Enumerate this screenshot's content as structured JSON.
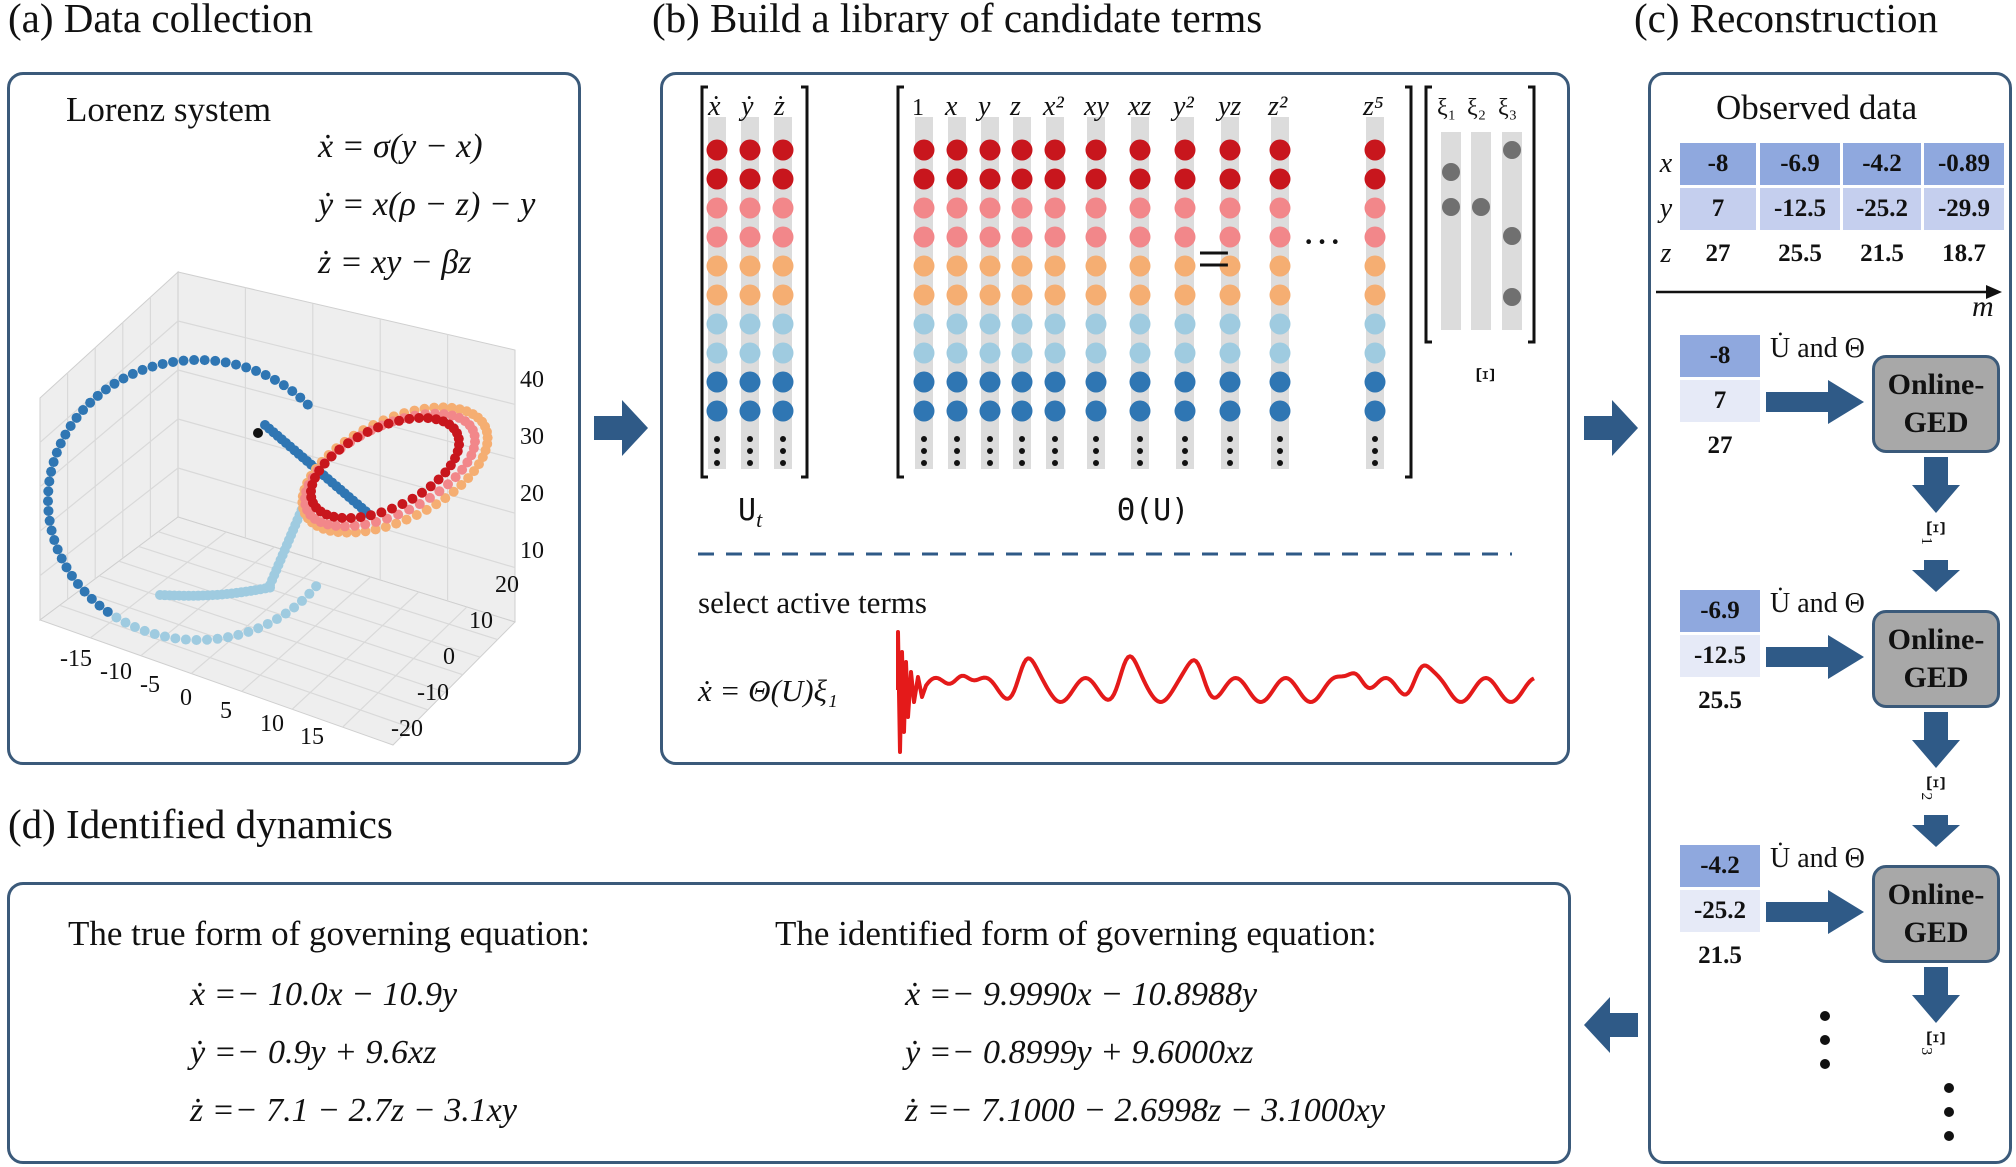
{
  "panels": {
    "a_title": "(a)  Data collection",
    "b_title": "(b)  Build a library of candidate terms",
    "c_title": "(c)  Reconstruction",
    "d_title": "(d)  Identified dynamics"
  },
  "lorenz": {
    "label": "Lorenz system",
    "eq1": "ẋ = σ(y − x)",
    "eq2": "ẏ = x(ρ − z) − y",
    "eq3": "ż = xy − βz",
    "x_ticks": [
      "-15",
      "-10",
      "-5",
      "0",
      "5",
      "10",
      "15"
    ],
    "y_ticks": [
      "20",
      "10",
      "0",
      "-10",
      "-20"
    ],
    "z_ticks": [
      "40",
      "30",
      "20",
      "10"
    ]
  },
  "library": {
    "lhs_headers": [
      "ẋ",
      "ẏ",
      "ż"
    ],
    "theta_headers": [
      "1",
      "x",
      "y",
      "z",
      "x²",
      "xy",
      "xz",
      "y²",
      "yz",
      "z²",
      "z⁵"
    ],
    "xi_headers": [
      "ξ₁",
      "ξ₂",
      "ξ₃"
    ],
    "ut_label": "U",
    "ut_sub": "t",
    "theta_label": "Θ(U)",
    "xi_label": "Ξ",
    "equals": "=",
    "ellipsis": "···",
    "select_text": "select active terms",
    "select_eq": "ẋ = Θ(U)ξ₁",
    "row_colors": [
      "#c8161d",
      "#c8161d",
      "#f2878a",
      "#f2878a",
      "#f5ae72",
      "#f5ae72",
      "#9fcbe0",
      "#9fcbe0",
      "#2f76b3",
      "#2f76b3"
    ]
  },
  "reconstruction": {
    "observed_label": "Observed data",
    "row_labels": [
      "x",
      "y",
      "z"
    ],
    "table": [
      [
        "-8",
        "-6.9",
        "-4.2",
        "-0.89"
      ],
      [
        "7",
        "-12.5",
        "-25.2",
        "-29.9"
      ],
      [
        "27",
        "25.5",
        "21.5",
        "18.7"
      ]
    ],
    "axis_label": "m",
    "steps": [
      {
        "vals": [
          "-8",
          "7",
          "27"
        ],
        "label": "U̇ and Θ",
        "box": "Online-GED",
        "xi": "Ξ₁"
      },
      {
        "vals": [
          "-6.9",
          "-12.5",
          "25.5"
        ],
        "label": "U̇ and Θ",
        "box": "Online-GED",
        "xi": "Ξ₂"
      },
      {
        "vals": [
          "-4.2",
          "-25.2",
          "21.5"
        ],
        "label": "U̇ and Θ",
        "box": "Online-GED",
        "xi": "Ξ₃"
      }
    ],
    "colors": {
      "cell_dark": "#8fa8de",
      "cell_mid": "#c5cfee",
      "cell_light": "#e6eaf7",
      "box": "#a8a8a8",
      "arrow": "#2f5a87"
    }
  },
  "identified": {
    "true_heading": "The true form of governing equation:",
    "true_eqs": [
      "ẋ =− 10.0x − 10.9y",
      "ẏ =− 0.9y + 9.6xz",
      "ż =− 7.1 − 2.7z − 3.1xy"
    ],
    "id_heading": "The identified form of governing equation:",
    "id_eqs": [
      "ẋ =− 9.9990x − 10.8988y",
      "ẏ =− 0.8999y + 9.6000xz",
      "ż =− 7.1000 − 2.6998z − 3.1000xy"
    ]
  }
}
